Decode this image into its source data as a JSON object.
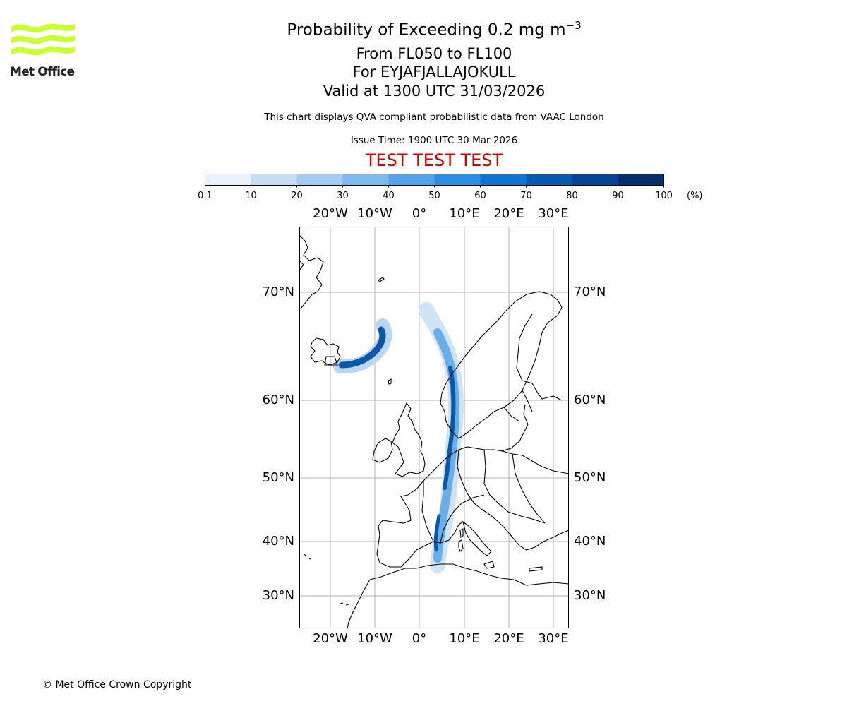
{
  "logo": {
    "text": "Met Office",
    "color": "#ccff33"
  },
  "titles": {
    "main_prefix": "Probability of Exceeding 0.2 mg m",
    "main_exponent": "−3",
    "levels": "From FL050 to FL100",
    "volcano": "For EYJAFJALLAJOKULL",
    "valid": "Valid at 1300 UTC 31/03/2026",
    "source_note": "This chart displays QVA compliant probabilistic data from VAAC London",
    "issue_time": "Issue Time: 1900 UTC 30 Mar 2026",
    "test_banner": "TEST TEST TEST"
  },
  "colorbar": {
    "ticks": [
      "0.1",
      "10",
      "20",
      "30",
      "40",
      "50",
      "60",
      "70",
      "80",
      "90",
      "100"
    ],
    "unit": "(%)",
    "colors": [
      "#eaf2fb",
      "#c8e0f6",
      "#a5cdf2",
      "#7dbaee",
      "#54a4ea",
      "#2b8de4",
      "#1274d1",
      "#065bb1",
      "#054492",
      "#032f6b"
    ]
  },
  "map": {
    "lon_labels": [
      "20°W",
      "10°W",
      "0°",
      "10°E",
      "20°E",
      "30°E"
    ],
    "lat_labels_left": [
      "70°N",
      "60°N",
      "50°N",
      "40°N",
      "30°N"
    ],
    "lat_labels_right": [
      "70°N",
      "60°N",
      "50°N",
      "40°N",
      "30°N"
    ],
    "plume_color": "#0a57a8",
    "coast_color": "#000000",
    "grid_color": "#b0b0b0"
  },
  "footer": {
    "copyright": "© Met Office Crown Copyright"
  }
}
